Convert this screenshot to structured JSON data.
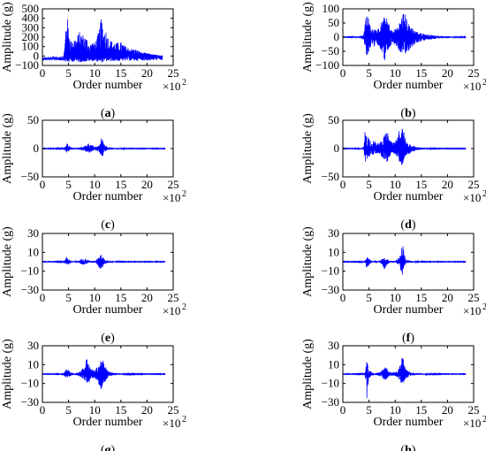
{
  "chart_data": [
    {
      "type": "line",
      "caption_letter": "a",
      "ylabel": "Amplitude (g)",
      "xlabel": "Order number",
      "x_multiplier": "×10",
      "x_multiplier_exp": "2",
      "xlim": [
        0,
        25
      ],
      "ylim": [
        -100,
        500
      ],
      "xticks": [
        "0",
        "5",
        "10",
        "15",
        "20",
        "25"
      ],
      "yticks": [
        "−100",
        "0",
        "100",
        "200",
        "300",
        "400",
        "500"
      ],
      "series": [
        {
          "color": "#0000ff",
          "envelope": {
            "x": [
              0,
              0.5,
              1,
              2,
              3,
              4,
              4.3,
              4.6,
              5,
              5.5,
              6,
              6.5,
              7,
              7.5,
              8,
              8.5,
              9,
              9.5,
              10,
              10.5,
              11,
              11.3,
              11.7,
              12,
              12.5,
              13,
              14,
              15,
              16,
              17,
              18,
              19,
              20,
              21,
              22,
              23
            ],
            "high": [
              -40,
              -40,
              -40,
              -40,
              -38,
              -30,
              120,
              490,
              300,
              150,
              200,
              180,
              260,
              240,
              220,
              190,
              120,
              150,
              140,
              210,
              320,
              430,
              260,
              300,
              210,
              170,
              140,
              150,
              100,
              80,
              70,
              40,
              30,
              20,
              10,
              0
            ],
            "low": [
              -48,
              -48,
              -48,
              -48,
              -48,
              -50,
              -60,
              -70,
              -65,
              -60,
              -60,
              -60,
              -65,
              -65,
              -60,
              -60,
              -55,
              -55,
              -55,
              -60,
              -65,
              -70,
              -60,
              -60,
              -55,
              -55,
              -55,
              -55,
              -50,
              -50,
              -50,
              -48,
              -48,
              -48,
              -45,
              -45
            ]
          }
        }
      ]
    },
    {
      "type": "line",
      "caption_letter": "b",
      "ylabel": "Amplitude (g)",
      "xlabel": "Order number",
      "x_multiplier": "×10",
      "x_multiplier_exp": "2",
      "xlim": [
        0,
        25
      ],
      "ylim": [
        -100,
        100
      ],
      "xticks": [
        "0",
        "5",
        "10",
        "15",
        "20",
        "25"
      ],
      "yticks": [
        "−100",
        "−50",
        "0",
        "50",
        "100"
      ],
      "series": [
        {
          "color": "#0000ff",
          "envelope": {
            "x": [
              0,
              1,
              2,
              3,
              3.5,
              4,
              4.5,
              5,
              5.5,
              6,
              6.5,
              7,
              7.5,
              8,
              8.5,
              9,
              9.5,
              10,
              10.5,
              11,
              11.5,
              12,
              12.5,
              13,
              13.5,
              14,
              15,
              16,
              17,
              18,
              20,
              22,
              23.5
            ],
            "high": [
              1,
              1,
              2,
              3,
              5,
              10,
              100,
              60,
              25,
              40,
              20,
              40,
              60,
              75,
              65,
              40,
              20,
              30,
              40,
              60,
              88,
              80,
              50,
              40,
              30,
              20,
              15,
              10,
              8,
              5,
              3,
              2,
              1
            ],
            "low": [
              -1,
              -1,
              -2,
              -3,
              -5,
              -10,
              -70,
              -55,
              -25,
              -40,
              -20,
              -40,
              -50,
              -85,
              -60,
              -40,
              -20,
              -30,
              -40,
              -55,
              -75,
              -70,
              -50,
              -40,
              -30,
              -20,
              -15,
              -10,
              -8,
              -5,
              -3,
              -2,
              -1
            ]
          }
        }
      ]
    },
    {
      "type": "line",
      "caption_letter": "c",
      "ylabel": "Amplitude (g)",
      "xlabel": "Order number",
      "x_multiplier": "×10",
      "x_multiplier_exp": "2",
      "xlim": [
        0,
        25
      ],
      "ylim": [
        -50,
        50
      ],
      "xticks": [
        "0",
        "5",
        "10",
        "15",
        "20",
        "25"
      ],
      "yticks": [
        "−50",
        "0",
        "50"
      ],
      "series": [
        {
          "color": "#0000ff",
          "envelope": {
            "x": [
              0,
              2,
              4,
              4.3,
              4.6,
              5,
              5.5,
              6,
              7,
              8,
              8.5,
              9,
              9.5,
              10,
              10.5,
              11,
              11.3,
              11.7,
              12,
              12.5,
              13,
              14,
              15,
              16,
              18,
              20,
              23.5
            ],
            "high": [
              0.5,
              0.5,
              1,
              3,
              12,
              6,
              2,
              1,
              2,
              4,
              8,
              10,
              6,
              3,
              4,
              8,
              22,
              12,
              6,
              4,
              2,
              1,
              1,
              0.5,
              0.5,
              0.5,
              0.5
            ],
            "low": [
              -0.5,
              -0.5,
              -1,
              -3,
              -8,
              -5,
              -2,
              -1,
              -2,
              -4,
              -6,
              -8,
              -5,
              -3,
              -4,
              -8,
              -18,
              -10,
              -5,
              -3,
              -2,
              -1,
              -1,
              -0.5,
              -0.5,
              -0.5,
              -0.5
            ]
          }
        }
      ]
    },
    {
      "type": "line",
      "caption_letter": "d",
      "ylabel": "Amplitude (g)",
      "xlabel": "Order number",
      "x_multiplier": "×10",
      "x_multiplier_exp": "2",
      "xlim": [
        0,
        25
      ],
      "ylim": [
        -50,
        50
      ],
      "xticks": [
        "0",
        "5",
        "10",
        "15",
        "20",
        "25"
      ],
      "yticks": [
        "−50",
        "0",
        "50"
      ],
      "series": [
        {
          "color": "#0000ff",
          "envelope": {
            "x": [
              0,
              2,
              3.5,
              4,
              4.3,
              4.6,
              5,
              5.5,
              6,
              6.5,
              7,
              7.5,
              8,
              8.5,
              9,
              9.5,
              10,
              10.5,
              11,
              11.3,
              11.7,
              12,
              12.5,
              13,
              13.5,
              14,
              15,
              16,
              18,
              20,
              23.5
            ],
            "high": [
              0.5,
              0.5,
              1,
              3,
              40,
              25,
              20,
              10,
              15,
              8,
              12,
              15,
              25,
              30,
              15,
              10,
              12,
              20,
              45,
              40,
              30,
              15,
              10,
              8,
              5,
              3,
              2,
              1,
              0.5,
              0.5,
              0.5
            ],
            "low": [
              -0.5,
              -0.5,
              -1,
              -3,
              -25,
              -20,
              -15,
              -10,
              -12,
              -8,
              -10,
              -15,
              -20,
              -25,
              -15,
              -10,
              -12,
              -18,
              -25,
              -30,
              -20,
              -12,
              -10,
              -8,
              -5,
              -3,
              -2,
              -1,
              -0.5,
              -0.5,
              -0.5
            ]
          }
        }
      ]
    },
    {
      "type": "line",
      "caption_letter": "e",
      "ylabel": "Amplitude (g)",
      "xlabel": "Order number",
      "x_multiplier": "×10",
      "x_multiplier_exp": "2",
      "xlim": [
        0,
        25
      ],
      "ylim": [
        -30,
        30
      ],
      "xticks": [
        "0",
        "5",
        "10",
        "15",
        "20",
        "25"
      ],
      "yticks": [
        "−30",
        "−10",
        "10",
        "30"
      ],
      "series": [
        {
          "color": "#0000ff",
          "envelope": {
            "x": [
              0,
              2,
              4,
              4.3,
              4.6,
              5,
              5.5,
              6,
              7,
              7.5,
              8,
              8.5,
              9,
              10,
              10.5,
              11,
              11.3,
              11.7,
              12,
              13,
              14,
              16,
              20,
              23.5
            ],
            "high": [
              0.3,
              0.3,
              0.5,
              2,
              5,
              3,
              1,
              0.5,
              1,
              3,
              4,
              3,
              1,
              1,
              3,
              6,
              8,
              5,
              2,
              1,
              0.5,
              0.3,
              0.3,
              0.3
            ],
            "low": [
              -0.3,
              -0.3,
              -0.5,
              -2,
              -4,
              -3,
              -1,
              -0.5,
              -1,
              -3,
              -3,
              -2,
              -1,
              -1,
              -3,
              -8,
              -7,
              -4,
              -2,
              -1,
              -0.5,
              -0.3,
              -0.3,
              -0.3
            ]
          }
        }
      ]
    },
    {
      "type": "line",
      "caption_letter": "f",
      "ylabel": "Amplitude (g)",
      "xlabel": "Order number",
      "x_multiplier": "×10",
      "x_multiplier_exp": "2",
      "xlim": [
        0,
        25
      ],
      "ylim": [
        -30,
        30
      ],
      "xticks": [
        "0",
        "5",
        "10",
        "15",
        "20",
        "25"
      ],
      "yticks": [
        "−30",
        "−10",
        "10",
        "30"
      ],
      "series": [
        {
          "color": "#0000ff",
          "envelope": {
            "x": [
              0,
              2,
              4,
              4.3,
              4.6,
              5,
              5.5,
              6,
              7,
              7.5,
              8,
              8.5,
              9,
              10,
              10.5,
              11,
              11.3,
              11.7,
              12,
              13,
              14,
              16,
              20,
              23.5
            ],
            "high": [
              0.3,
              0.3,
              0.5,
              2,
              5,
              3,
              1,
              0.5,
              1,
              3,
              4,
              3,
              1,
              1,
              3,
              8,
              26,
              10,
              3,
              1,
              0.5,
              0.3,
              0.3,
              0.3
            ],
            "low": [
              -0.3,
              -0.3,
              -0.5,
              -2,
              -11,
              -3,
              -1,
              -0.5,
              -1,
              -3,
              -9,
              -3,
              -1,
              -1,
              -3,
              -8,
              -16,
              -6,
              -2,
              -1,
              -0.5,
              -0.3,
              -0.3,
              -0.3
            ]
          }
        }
      ]
    },
    {
      "type": "line",
      "caption_letter": "g",
      "ylabel": "Amplitude (g)",
      "xlabel": "Order number",
      "x_multiplier": "×10",
      "x_multiplier_exp": "2",
      "xlim": [
        0,
        25
      ],
      "ylim": [
        -30,
        30
      ],
      "xticks": [
        "0",
        "5",
        "10",
        "15",
        "20",
        "25"
      ],
      "yticks": [
        "−30",
        "−10",
        "10",
        "30"
      ],
      "series": [
        {
          "color": "#0000ff",
          "envelope": {
            "x": [
              0,
              2,
              4,
              4.3,
              4.6,
              5,
              5.5,
              6,
              7,
              7.5,
              8,
              8.5,
              8.8,
              9.2,
              10,
              10.5,
              11,
              11.3,
              11.7,
              12,
              12.5,
              13,
              14,
              16,
              20,
              23.5
            ],
            "high": [
              0.3,
              0.3,
              0.5,
              3,
              6,
              4,
              2,
              1,
              2,
              5,
              8,
              18,
              12,
              6,
              4,
              8,
              12,
              18,
              12,
              8,
              4,
              2,
              1,
              0.5,
              0.3,
              0.3
            ],
            "low": [
              -0.3,
              -0.3,
              -0.5,
              -3,
              -4,
              -3,
              -2,
              -1,
              -2,
              -4,
              -6,
              -10,
              -12,
              -6,
              -4,
              -8,
              -14,
              -20,
              -12,
              -8,
              -4,
              -2,
              -1,
              -0.5,
              -0.3,
              -0.3
            ]
          }
        }
      ]
    },
    {
      "type": "line",
      "caption_letter": "h",
      "ylabel": "Amplitude (g)",
      "xlabel": "Order number",
      "x_multiplier": "×10",
      "x_multiplier_exp": "2",
      "xlim": [
        0,
        25
      ],
      "ylim": [
        -30,
        30
      ],
      "xticks": [
        "0",
        "5",
        "10",
        "15",
        "20",
        "25"
      ],
      "yticks": [
        "−30",
        "−10",
        "10",
        "30"
      ],
      "series": [
        {
          "color": "#0000ff",
          "envelope": {
            "x": [
              0,
              2,
              4,
              4.3,
              4.6,
              5,
              5.5,
              6,
              7,
              7.5,
              8,
              8.5,
              9,
              10,
              10.5,
              11,
              11.3,
              11.7,
              12,
              12.5,
              13,
              14,
              16,
              20,
              23.5
            ],
            "high": [
              0.3,
              0.3,
              0.5,
              3,
              14,
              5,
              2,
              1,
              2,
              4,
              7,
              6,
              2,
              2,
              4,
              10,
              22,
              12,
              6,
              3,
              2,
              1,
              0.5,
              0.3,
              0.3
            ],
            "low": [
              -0.3,
              -0.3,
              -0.5,
              -3,
              -27,
              -5,
              -2,
              -1,
              -2,
              -4,
              -7,
              -5,
              -2,
              -2,
              -4,
              -8,
              -12,
              -8,
              -5,
              -3,
              -2,
              -1,
              -0.5,
              -0.3,
              -0.3
            ]
          }
        }
      ]
    }
  ]
}
